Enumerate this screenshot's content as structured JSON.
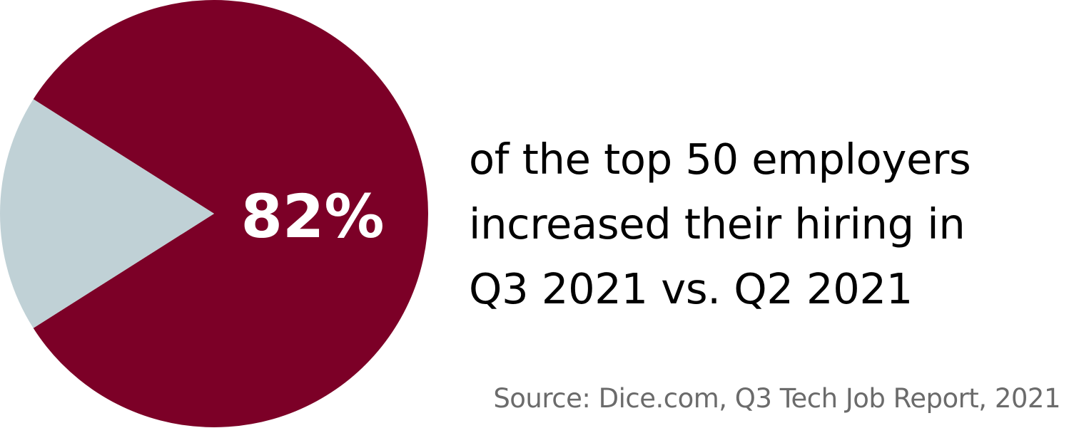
{
  "chart_data": {
    "type": "pie",
    "slices": [
      {
        "label": "82%",
        "value": 82,
        "color": "#7c0027"
      },
      {
        "label": "",
        "value": 18,
        "color": "#c0d1d6"
      }
    ],
    "title": "",
    "legend": "none"
  },
  "headline": {
    "lines": [
      "of the top 50 employers",
      "increased their hiring in",
      "Q3 2021 vs. Q2 2021"
    ]
  },
  "source": "Source: Dice.com, Q3 Tech Job Report, 2021"
}
